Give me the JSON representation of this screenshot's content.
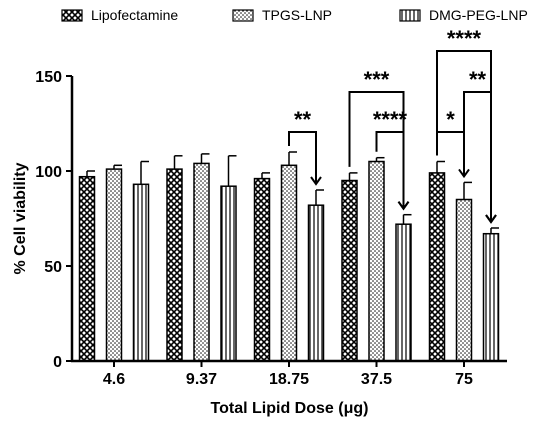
{
  "chart_data": {
    "type": "bar",
    "title": "",
    "xlabel": "Total Lipid Dose (μg)",
    "ylabel": "% Cell viability",
    "ylim": [
      0,
      150
    ],
    "yticks": [
      0,
      50,
      100,
      150
    ],
    "categories": [
      "4.6",
      "9.37",
      "18.75",
      "37.5",
      "75"
    ],
    "series": [
      {
        "name": "Lipofectamine",
        "pattern": "crosshatch",
        "values": [
          97,
          101,
          96,
          95,
          99
        ],
        "errors": [
          3,
          7,
          3,
          4,
          6
        ]
      },
      {
        "name": "TPGS-LNP",
        "pattern": "dots",
        "values": [
          101,
          104,
          103,
          105,
          85
        ],
        "errors": [
          2,
          5,
          7,
          2,
          9
        ]
      },
      {
        "name": "DMG-PEG-LNP",
        "pattern": "vertical-lines",
        "values": [
          93,
          92,
          82,
          72,
          67
        ],
        "errors": [
          12,
          16,
          8,
          5,
          3
        ]
      }
    ],
    "legend": {
      "position": "top"
    },
    "significance": [
      {
        "category": "18.75",
        "from": "TPGS-LNP",
        "to": "DMG-PEG-LNP",
        "label": "**",
        "level": 1
      },
      {
        "category": "37.5",
        "from": "Lipofectamine",
        "to": "DMG-PEG-LNP",
        "label": "***",
        "level": 2
      },
      {
        "category": "37.5",
        "from": "TPGS-LNP",
        "to": "DMG-PEG-LNP",
        "label": "****",
        "level": 1
      },
      {
        "category": "75",
        "from": "Lipofectamine",
        "to": "DMG-PEG-LNP",
        "label": "****",
        "level": 3
      },
      {
        "category": "75",
        "from": "TPGS-LNP",
        "to": "DMG-PEG-LNP",
        "label": "**",
        "level": 2
      },
      {
        "category": "75",
        "from": "Lipofectamine",
        "to": "TPGS-LNP",
        "label": "*",
        "level": 1
      }
    ]
  }
}
